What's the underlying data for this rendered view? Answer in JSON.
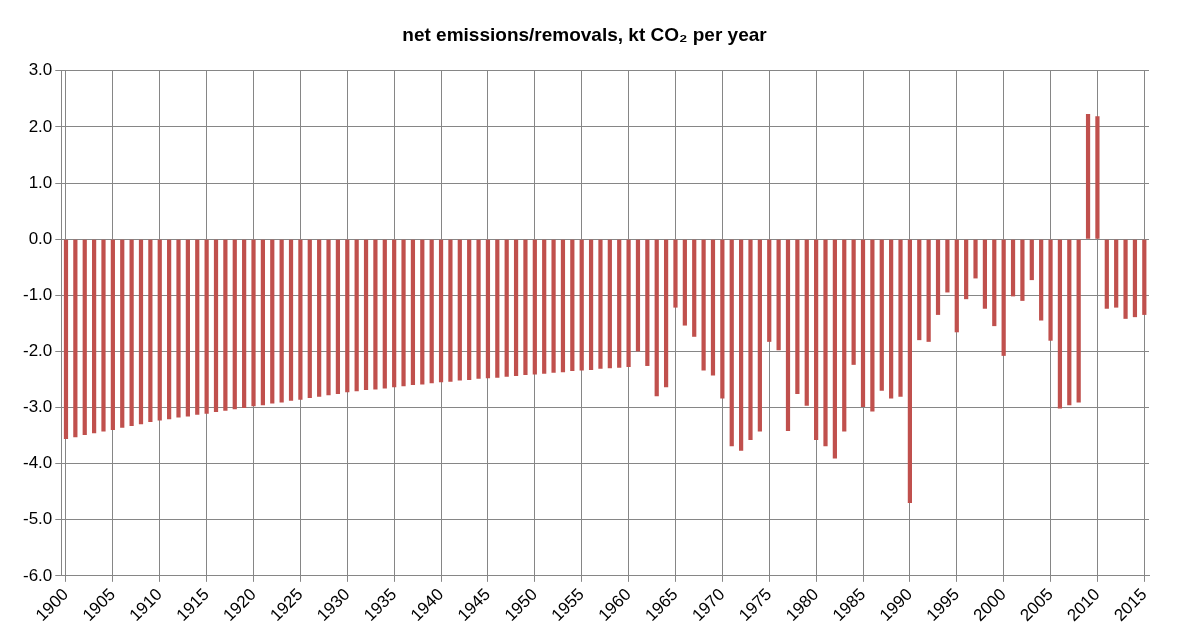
{
  "chart_data": {
    "type": "bar",
    "title": "net emissions/removals, kt CO₂ per year",
    "categories": [
      "1900",
      null,
      null,
      null,
      null,
      "1905",
      null,
      null,
      null,
      null,
      "1910",
      null,
      null,
      null,
      null,
      "1915",
      null,
      null,
      null,
      null,
      "1920",
      null,
      null,
      null,
      null,
      "1925",
      null,
      null,
      null,
      null,
      "1930",
      null,
      null,
      null,
      null,
      "1935",
      null,
      null,
      null,
      null,
      "1940",
      null,
      null,
      null,
      null,
      "1945",
      null,
      null,
      null,
      null,
      "1950",
      null,
      null,
      null,
      null,
      "1955",
      null,
      null,
      null,
      null,
      "1960",
      null,
      null,
      null,
      null,
      "1965",
      null,
      null,
      null,
      null,
      "1970",
      null,
      null,
      null,
      null,
      "1975",
      null,
      null,
      null,
      null,
      "1980",
      null,
      null,
      null,
      null,
      "1985",
      null,
      null,
      null,
      null,
      "1990",
      null,
      null,
      null,
      null,
      "1995",
      null,
      null,
      null,
      null,
      "2000",
      null,
      null,
      null,
      null,
      "2005",
      null,
      null,
      null,
      null,
      "2010",
      null,
      null,
      null,
      null,
      "2015"
    ],
    "values": [
      -3.56,
      -3.53,
      -3.49,
      -3.46,
      -3.43,
      -3.4,
      -3.36,
      -3.33,
      -3.3,
      -3.26,
      -3.23,
      -3.21,
      -3.18,
      -3.16,
      -3.13,
      -3.11,
      -3.08,
      -3.06,
      -3.03,
      -3.01,
      -2.98,
      -2.96,
      -2.93,
      -2.91,
      -2.88,
      -2.86,
      -2.83,
      -2.81,
      -2.78,
      -2.76,
      -2.73,
      -2.71,
      -2.69,
      -2.68,
      -2.66,
      -2.64,
      -2.62,
      -2.6,
      -2.59,
      -2.57,
      -2.55,
      -2.54,
      -2.52,
      -2.51,
      -2.49,
      -2.48,
      -2.47,
      -2.45,
      -2.44,
      -2.42,
      -2.41,
      -2.4,
      -2.38,
      -2.37,
      -2.35,
      -2.34,
      -2.33,
      -2.31,
      -2.3,
      -2.29,
      -2.28,
      -2.0,
      -2.26,
      -2.8,
      -2.64,
      -1.22,
      -1.54,
      -1.74,
      -2.34,
      -2.43,
      -2.84,
      -3.69,
      -3.77,
      -3.58,
      -3.43,
      -1.83,
      -1.98,
      -3.42,
      -2.76,
      -2.97,
      -3.58,
      -3.69,
      -3.91,
      -3.43,
      -2.24,
      -2.99,
      -3.07,
      -2.7,
      -2.84,
      -2.81,
      -4.7,
      -1.8,
      -1.83,
      -1.35,
      -0.95,
      -1.66,
      -1.07,
      -0.7,
      -1.24,
      -1.55,
      -2.08,
      -1.02,
      -1.1,
      -0.73,
      -1.45,
      -1.81,
      -3.02,
      -2.96,
      -2.91,
      2.23,
      2.19,
      -1.24,
      -1.22,
      -1.42,
      -1.39,
      -1.35
    ],
    "color": "#c0504d",
    "ylim": [
      -6,
      3
    ],
    "yticks": [
      {
        "value": -6,
        "label": "-6.0"
      },
      {
        "value": -5,
        "label": "-5.0"
      },
      {
        "value": -4,
        "label": "-4.0"
      },
      {
        "value": -3,
        "label": "-3.0"
      },
      {
        "value": -2,
        "label": "-2.0"
      },
      {
        "value": -1,
        "label": "-1.0"
      },
      {
        "value": 0,
        "label": "0.0"
      },
      {
        "value": 1,
        "label": "1.0"
      },
      {
        "value": 2,
        "label": "2.0"
      },
      {
        "value": 3,
        "label": "3.0"
      }
    ],
    "grid": true
  }
}
